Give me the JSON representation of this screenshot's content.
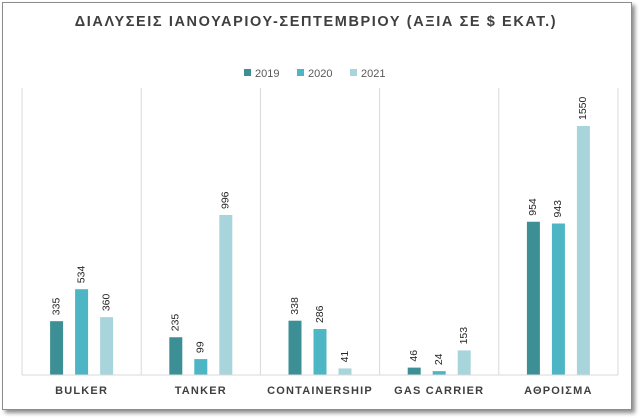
{
  "chart_data": {
    "type": "bar",
    "title": "ΔΙΑΛΥΣΕΙΣ ΙΑΝΟΥΑΡΙΟΥ-ΣΕΠΤΕΜΒΡΙΟΥ (ΑΞΙΑ ΣΕ $ ΕΚΑΤ.)",
    "xlabel": "",
    "ylabel": "",
    "categories": [
      "BULKER",
      "TANKER",
      "CONTAINERSHIP",
      "GAS CARRIER",
      "ΑΘΡΟΙΣΜΑ"
    ],
    "series": [
      {
        "name": "2019",
        "color": "#3d8f96",
        "values": [
          335,
          235,
          338,
          46,
          954
        ]
      },
      {
        "name": "2020",
        "color": "#4db5c3",
        "values": [
          534,
          99,
          286,
          24,
          943
        ]
      },
      {
        "name": "2021",
        "color": "#a8d5dc",
        "values": [
          360,
          996,
          41,
          153,
          1550
        ]
      }
    ],
    "ylim": [
      0,
      1550
    ],
    "grid": false,
    "legend_position": "top"
  }
}
